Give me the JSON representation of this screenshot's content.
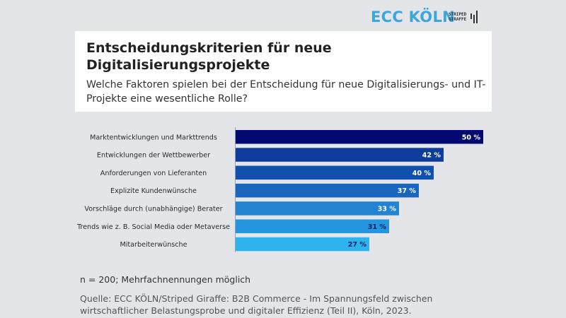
{
  "branding": {
    "logo_primary": "ECC KÖLN",
    "logo_secondary_line1": "STRIPED",
    "logo_secondary_line2": "GIRAFFE",
    "logo_secondary_icon": "giraffe-bars-icon",
    "primary_color": "#3aa6dc"
  },
  "header": {
    "title": "Entscheidungskriterien für neue Digitalisierungsprojekte",
    "subtitle": "Welche Faktoren spielen bei der Entscheidung für neue Digitalisierungs- und IT-Projekte eine wesentliche Rolle?"
  },
  "chart_data": {
    "type": "bar",
    "orientation": "horizontal",
    "title": "Entscheidungskriterien für neue Digitalisierungsprojekte",
    "subtitle": "Welche Faktoren spielen bei der Entscheidung für neue Digitalisierungs- und IT-Projekte eine wesentliche Rolle?",
    "xlabel": "",
    "ylabel": "",
    "unit": "%",
    "xlim": [
      0,
      50
    ],
    "grid": false,
    "legend": "none",
    "categories": [
      "Marktentwicklungen und Markttrends",
      "Entwicklungen der Wettbewerber",
      "Anforderungen von Lieferanten",
      "Explizite Kundenwünsche",
      "Vorschläge durch (unabhängige) Berater",
      "Trends wie z. B. Social Media oder Metaverse",
      "Mitarbeiterwünsche"
    ],
    "values": [
      50,
      42,
      40,
      37,
      33,
      31,
      27
    ],
    "data_labels": [
      "50 %",
      "42 %",
      "40 %",
      "37 %",
      "33 %",
      "31 %",
      "27 %"
    ],
    "bar_colors": [
      "#020a72",
      "#0e3d9e",
      "#1250b0",
      "#1a66be",
      "#2283d2",
      "#2595dd",
      "#2db4ef"
    ],
    "label_colors": [
      "#ffffff",
      "#ffffff",
      "#ffffff",
      "#ffffff",
      "#ffffff",
      "#0b1f5c",
      "#0b1f5c"
    ]
  },
  "footer": {
    "note": "n = 200; Mehrfachnennungen möglich",
    "source_line1": "Quelle: ECC KÖLN/Striped Giraffe: B2B Commerce - Im Spannungsfeld zwischen",
    "source_line2": "wirtschaftlicher Belastungsprobe und digitaler Effizienz (Teil II), Köln, 2023."
  }
}
